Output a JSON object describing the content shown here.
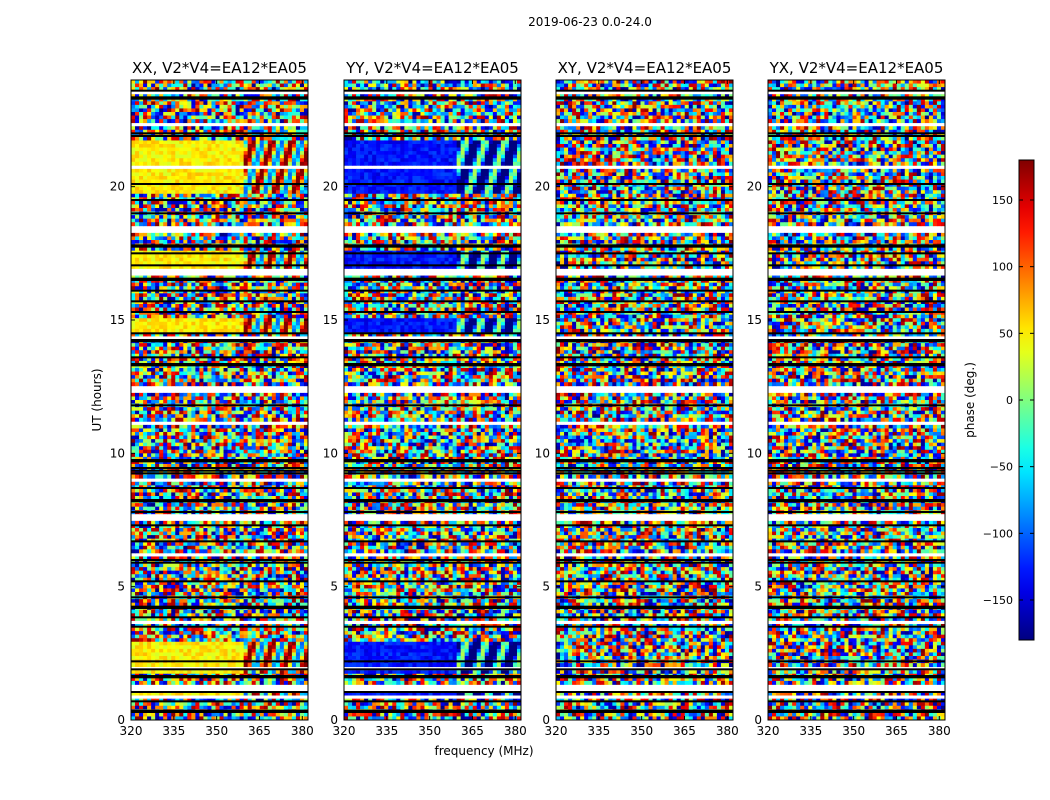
{
  "figure": {
    "title": "2019-06-23 0.0-24.0",
    "xlabel": "frequency (MHz)",
    "ylabel": "UT (hours)"
  },
  "chart_data": {
    "type": "heatmap",
    "title": "2019-06-23 0.0-24.0",
    "xlabel": "frequency (MHz)",
    "ylabel": "UT (hours)",
    "xlim": [
      320,
      382
    ],
    "ylim": [
      0,
      24
    ],
    "xticks": [
      320,
      335,
      350,
      365,
      380
    ],
    "yticks": [
      0,
      5,
      10,
      15,
      20
    ],
    "panels": [
      {
        "title": "XX, V2*V4=EA12*EA05",
        "pol": "XX",
        "bias_phase": 50
      },
      {
        "title": "YY, V2*V4=EA12*EA05",
        "pol": "YY",
        "bias_phase": -130
      },
      {
        "title": "XY, V2*V4=EA12*EA05",
        "pol": "XY",
        "bias_phase": null
      },
      {
        "title": "YX, V2*V4=EA12*EA05",
        "pol": "YX",
        "bias_phase": null
      }
    ],
    "colorbar": {
      "label": "phase (deg.)",
      "range": [
        -180,
        180
      ],
      "ticks": [
        -150,
        -100,
        -50,
        0,
        50,
        100,
        150
      ],
      "tick_labels": [
        "−150",
        "−100",
        "−50",
        "0",
        "50",
        "100",
        "150"
      ],
      "colormap": "jet"
    },
    "black_rows_ut": [
      0.3,
      0.35,
      0.7,
      1.05,
      1.6,
      1.65,
      1.9,
      2.2,
      3.5,
      3.85,
      4.2,
      4.25,
      4.6,
      5.2,
      5.9,
      6.0,
      6.7,
      7.3,
      7.8,
      8.2,
      8.25,
      8.7,
      9.25,
      9.35,
      9.45,
      9.7,
      9.75,
      11.8,
      13.3,
      13.35,
      13.6,
      14.2,
      14.25,
      14.5,
      15.3,
      15.7,
      16.1,
      16.5,
      16.55,
      17.05,
      17.5,
      17.75,
      17.8,
      19.0,
      19.5,
      20.1,
      21.9,
      22.0,
      23.3,
      23.35,
      23.6
    ],
    "blank_rows_ut": [
      0.9,
      1.2,
      1.9,
      3.7,
      6.2,
      7.6,
      9.0,
      11.1,
      12.4,
      14.3,
      16.8,
      18.4,
      20.7,
      22.3,
      23.5
    ],
    "biased_bands_ut": [
      [
        0.9,
        1.1
      ],
      [
        1.8,
        2.9
      ],
      [
        14.6,
        15.1
      ],
      [
        16.9,
        17.6
      ],
      [
        19.8,
        21.7
      ]
    ]
  }
}
